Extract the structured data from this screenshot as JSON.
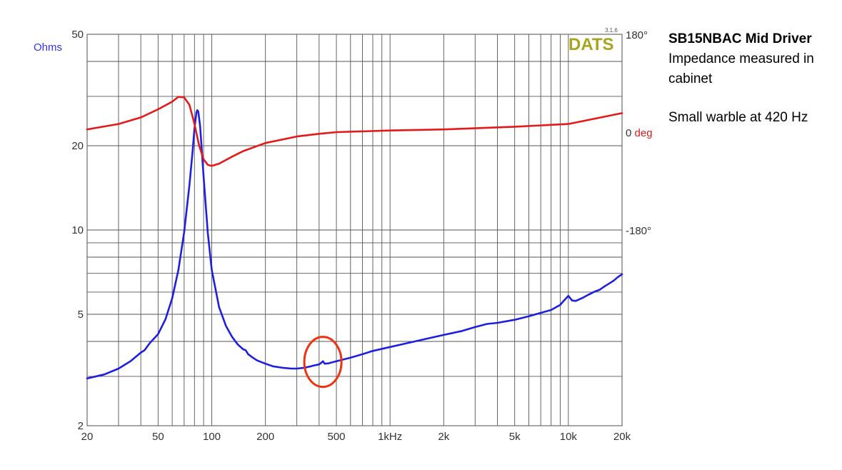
{
  "chart_data": {
    "type": "line",
    "logo": "DATS",
    "version": "3.1.6",
    "x_scale": "log",
    "xlim": [
      20,
      20000
    ],
    "x_ticks": [
      {
        "value": 20,
        "label": "20"
      },
      {
        "value": 50,
        "label": "50"
      },
      {
        "value": 100,
        "label": "100"
      },
      {
        "value": 200,
        "label": "200"
      },
      {
        "value": 500,
        "label": "500"
      },
      {
        "value": 1000,
        "label": "1kHz"
      },
      {
        "value": 2000,
        "label": "2k"
      },
      {
        "value": 5000,
        "label": "5k"
      },
      {
        "value": 10000,
        "label": "10k"
      },
      {
        "value": 20000,
        "label": "20k"
      }
    ],
    "y_left": {
      "label": "Ohms",
      "scale": "log",
      "range": [
        2,
        50
      ],
      "ticks": [
        {
          "value": 2,
          "label": "2"
        },
        {
          "value": 5,
          "label": "5"
        },
        {
          "value": 10,
          "label": "10"
        },
        {
          "value": 20,
          "label": "20"
        },
        {
          "value": 50,
          "label": "50"
        }
      ]
    },
    "y_right": {
      "unit_label": "deg",
      "range": [
        -540,
        180
      ],
      "ticks": [
        {
          "value": 180,
          "label": "180°"
        },
        {
          "value": 0,
          "label": "0"
        },
        {
          "value": -180,
          "label": "-180°"
        }
      ]
    },
    "grid": true,
    "series": [
      {
        "color": "#1f1fe0",
        "axis": "left",
        "points": [
          [
            20,
            2.95
          ],
          [
            25,
            3.05
          ],
          [
            30,
            3.2
          ],
          [
            35,
            3.4
          ],
          [
            40,
            3.65
          ],
          [
            42,
            3.72
          ],
          [
            45,
            3.95
          ],
          [
            50,
            4.25
          ],
          [
            55,
            4.8
          ],
          [
            60,
            5.7
          ],
          [
            65,
            7.2
          ],
          [
            70,
            9.8
          ],
          [
            75,
            14.5
          ],
          [
            78,
            19.0
          ],
          [
            80,
            23.0
          ],
          [
            82,
            26.3
          ],
          [
            83,
            26.8
          ],
          [
            84,
            26.5
          ],
          [
            86,
            23.5
          ],
          [
            90,
            15.5
          ],
          [
            95,
            9.8
          ],
          [
            100,
            7.2
          ],
          [
            110,
            5.3
          ],
          [
            120,
            4.55
          ],
          [
            130,
            4.15
          ],
          [
            140,
            3.9
          ],
          [
            150,
            3.75
          ],
          [
            155,
            3.72
          ],
          [
            160,
            3.6
          ],
          [
            170,
            3.5
          ],
          [
            180,
            3.42
          ],
          [
            200,
            3.33
          ],
          [
            220,
            3.26
          ],
          [
            250,
            3.22
          ],
          [
            280,
            3.2
          ],
          [
            300,
            3.2
          ],
          [
            330,
            3.22
          ],
          [
            360,
            3.26
          ],
          [
            380,
            3.29
          ],
          [
            400,
            3.31
          ],
          [
            410,
            3.35
          ],
          [
            420,
            3.4
          ],
          [
            430,
            3.33
          ],
          [
            450,
            3.34
          ],
          [
            500,
            3.4
          ],
          [
            600,
            3.5
          ],
          [
            700,
            3.6
          ],
          [
            800,
            3.7
          ],
          [
            1000,
            3.82
          ],
          [
            1200,
            3.92
          ],
          [
            1500,
            4.05
          ],
          [
            2000,
            4.22
          ],
          [
            2500,
            4.35
          ],
          [
            3000,
            4.5
          ],
          [
            3500,
            4.62
          ],
          [
            4000,
            4.66
          ],
          [
            5000,
            4.78
          ],
          [
            6000,
            4.92
          ],
          [
            7000,
            5.06
          ],
          [
            8000,
            5.18
          ],
          [
            9000,
            5.4
          ],
          [
            9500,
            5.62
          ],
          [
            10000,
            5.82
          ],
          [
            10500,
            5.6
          ],
          [
            11000,
            5.58
          ],
          [
            12000,
            5.72
          ],
          [
            13000,
            5.88
          ],
          [
            14000,
            6.02
          ],
          [
            15000,
            6.12
          ],
          [
            16000,
            6.3
          ],
          [
            17000,
            6.45
          ],
          [
            18000,
            6.6
          ],
          [
            19000,
            6.8
          ],
          [
            20000,
            6.95
          ]
        ]
      },
      {
        "color": "#e41a1a",
        "axis": "right",
        "points": [
          [
            20,
            5
          ],
          [
            30,
            15
          ],
          [
            40,
            27
          ],
          [
            50,
            42
          ],
          [
            60,
            56
          ],
          [
            65,
            65
          ],
          [
            70,
            64
          ],
          [
            75,
            50
          ],
          [
            80,
            15
          ],
          [
            85,
            -25
          ],
          [
            90,
            -50
          ],
          [
            95,
            -60
          ],
          [
            100,
            -62
          ],
          [
            110,
            -58
          ],
          [
            130,
            -45
          ],
          [
            150,
            -35
          ],
          [
            200,
            -20
          ],
          [
            300,
            -8
          ],
          [
            400,
            -3
          ],
          [
            500,
            0
          ],
          [
            1000,
            3
          ],
          [
            2000,
            5
          ],
          [
            5000,
            10
          ],
          [
            10000,
            15
          ],
          [
            20000,
            35
          ]
        ]
      }
    ]
  },
  "annotation": {
    "color": "#ee3311",
    "freq": 420,
    "ohms": 3.38
  },
  "notes": {
    "title": "SB15NBAC Mid Driver",
    "line2": "Impedance measured in",
    "line3": "cabinet",
    "line4": "Small warble at 420 Hz"
  }
}
